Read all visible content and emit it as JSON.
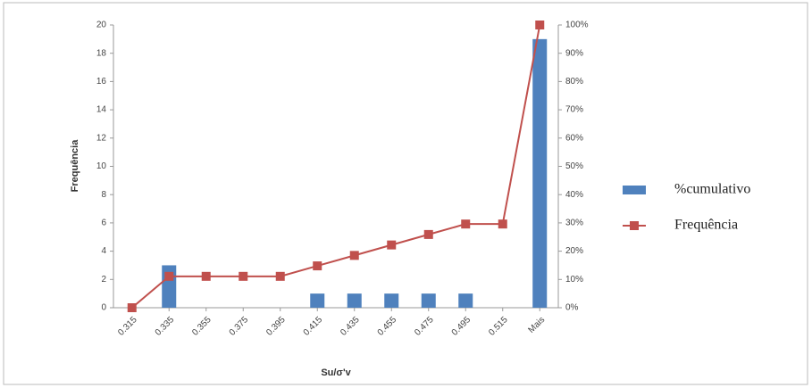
{
  "chart_data": {
    "type": "bar-line",
    "x_label": "Su/σ'v",
    "y_label": "Frequência",
    "categories": [
      "0.315",
      "0.335",
      "0.355",
      "0.375",
      "0.395",
      "0.415",
      "0.435",
      "0.455",
      "0.475",
      "0.495",
      "0.515",
      "Mais"
    ],
    "series": [
      {
        "name": "%cumulativo",
        "type": "bar",
        "color": "#4f81bd",
        "values": [
          0,
          3,
          0,
          0,
          0,
          1,
          1,
          1,
          1,
          1,
          0,
          19
        ]
      },
      {
        "name": "Frequência",
        "type": "line",
        "axis": "y2",
        "color": "#c0504d",
        "values": [
          0,
          11.1,
          11.1,
          11.1,
          11.1,
          14.8,
          18.5,
          22.2,
          25.9,
          29.6,
          29.6,
          100
        ]
      }
    ],
    "ylim": [
      0,
      20
    ],
    "yticks": [
      0,
      2,
      4,
      6,
      8,
      10,
      12,
      14,
      16,
      18,
      20
    ],
    "y2lim": [
      0,
      100
    ],
    "y2ticks": [
      {
        "value": 0,
        "label": "0%"
      },
      {
        "value": 10,
        "label": "10%"
      },
      {
        "value": 20,
        "label": "20%"
      },
      {
        "value": 30,
        "label": "30%"
      },
      {
        "value": 40,
        "label": "40%"
      },
      {
        "value": 50,
        "label": "50%"
      },
      {
        "value": 60,
        "label": "60%"
      },
      {
        "value": 70,
        "label": "70%"
      },
      {
        "value": 80,
        "label": "80%"
      },
      {
        "value": 90,
        "label": "90%"
      },
      {
        "value": 100,
        "label": "100%"
      }
    ],
    "legend": "right"
  }
}
